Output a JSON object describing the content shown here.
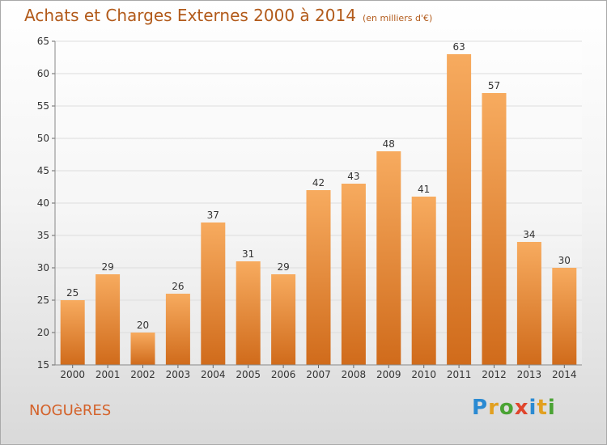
{
  "header": {
    "title": "Achats et Charges Externes 2000 à 2014",
    "subtitle": "(en milliers d'€)"
  },
  "footer": {
    "commune": "NOGUèRES",
    "logo_text": "Proxiti"
  },
  "colors": {
    "bar_top": "#f5a55a",
    "bar_bottom": "#d4701f",
    "title": "#b25a1a",
    "commune": "#d4622a"
  },
  "chart_data": {
    "type": "bar",
    "title": "Achats et Charges Externes 2000 à 2014",
    "subtitle": "(en milliers d'€)",
    "xlabel": "",
    "ylabel": "",
    "categories": [
      "2000",
      "2001",
      "2002",
      "2003",
      "2004",
      "2005",
      "2006",
      "2007",
      "2008",
      "2009",
      "2010",
      "2011",
      "2012",
      "2013",
      "2014"
    ],
    "values": [
      25,
      29,
      20,
      26,
      37,
      31,
      29,
      42,
      43,
      48,
      41,
      63,
      57,
      34,
      30
    ],
    "ylim": [
      15,
      65
    ],
    "yticks": [
      15,
      20,
      25,
      30,
      35,
      40,
      45,
      50,
      55,
      60,
      65
    ],
    "grid": true,
    "legend": "none"
  }
}
